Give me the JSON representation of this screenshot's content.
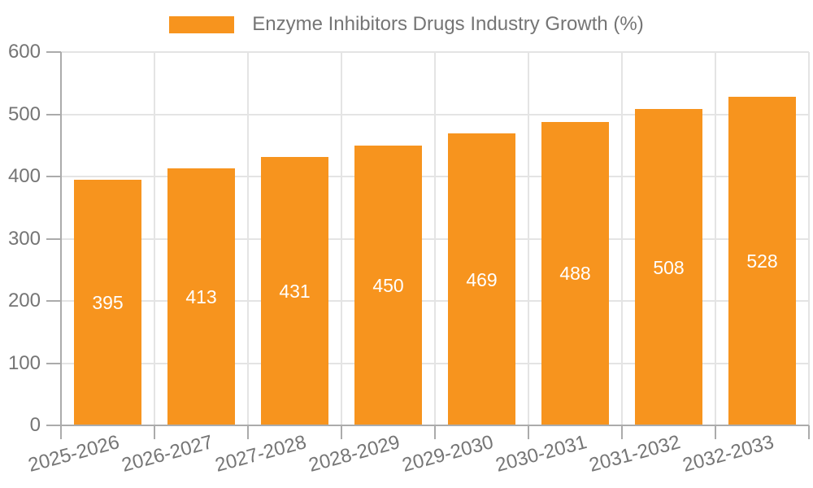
{
  "chart_data": {
    "type": "bar",
    "title": "Enzyme Inhibitors Drugs Industry Growth (%)",
    "categories": [
      "2025-2026",
      "2026-2027",
      "2027-2028",
      "2028-2029",
      "2029-2030",
      "2030-2031",
      "2031-2032",
      "2032-2033"
    ],
    "values": [
      395,
      413,
      431,
      450,
      469,
      488,
      508,
      528
    ],
    "xlabel": "",
    "ylabel": "",
    "ylim": [
      0,
      600
    ],
    "yticks": [
      0,
      100,
      200,
      300,
      400,
      500,
      600
    ],
    "grid": true,
    "legend_position": "top-center",
    "x_label_rotation_deg": -15,
    "value_labels_inside_bars": true,
    "colors": {
      "bar": "#F7941E",
      "value_label": "#FFFFFF",
      "axis_text": "#757575",
      "grid_line": "#E4E4E4",
      "axis_line": "#ABABAB",
      "background": "#FFFFFF"
    }
  }
}
